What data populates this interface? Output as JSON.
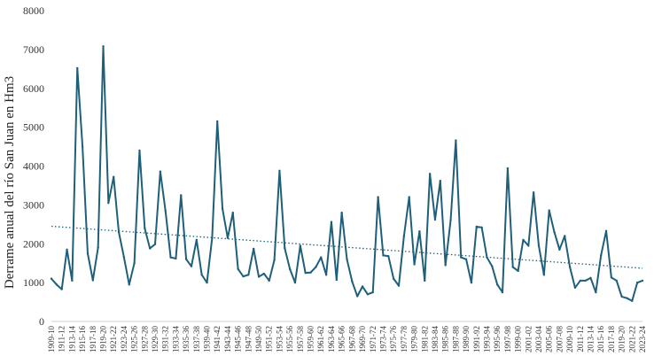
{
  "chart_data": {
    "type": "line",
    "title": "",
    "xlabel": "",
    "ylabel": "Derrame anual del río San Juan en Hm3",
    "ylim": [
      0,
      8000
    ],
    "yticks": [
      0,
      1000,
      2000,
      3000,
      4000,
      5000,
      6000,
      7000,
      8000
    ],
    "grid": false,
    "legend": "none",
    "x_first": "1909-10",
    "x_last": "2023-24",
    "x_count": 115,
    "x_tick_labels": [
      "1909-10",
      "1911-12",
      "1913-14",
      "1915-16",
      "1917-18",
      "1919-20",
      "1921-22",
      "1923-24",
      "1925-26",
      "1927-28",
      "1929-30",
      "1931-32",
      "1933-34",
      "1935-36",
      "1937-38",
      "1939-40",
      "1941-42",
      "1943-44",
      "1945-46",
      "1947-48",
      "1949-50",
      "1951-52",
      "1953-54",
      "1955-56",
      "1957-58",
      "1959-60",
      "1961-62",
      "1963-64",
      "1965-66",
      "1967-68",
      "1969-70",
      "1971-72",
      "1973-74",
      "1975-76",
      "1977-78",
      "1979-80",
      "1981-82",
      "1983-84",
      "1985-86",
      "1987-88",
      "1989-90",
      "1991-92",
      "1993-94",
      "1995-96",
      "1997-98",
      "1999-00",
      "2001-02",
      "2003-04",
      "2005-06",
      "2007-08",
      "2009-10",
      "2011-12",
      "2013-14",
      "2015-16",
      "2017-18",
      "2019-20",
      "2021-22",
      "2023-24"
    ],
    "colors": {
      "series": "#1f5f7a",
      "trend": "#1f5f7a",
      "text": "#333333"
    },
    "series": [
      {
        "values": [
          1100,
          950,
          830,
          1850,
          1050,
          6520,
          4500,
          1750,
          1060,
          1900,
          7080,
          3050,
          3720,
          2300,
          1650,
          950,
          1500,
          4400,
          2400,
          1880,
          1990,
          3860,
          2850,
          1650,
          1620,
          3250,
          1600,
          1420,
          2100,
          1200,
          1000,
          2150,
          5150,
          2900,
          2150,
          2800,
          1350,
          1160,
          1200,
          1870,
          1150,
          1230,
          1050,
          1580,
          3880,
          1890,
          1350,
          1000,
          1950,
          1250,
          1260,
          1400,
          1650,
          1200,
          2560,
          1070,
          2800,
          1600,
          1030,
          650,
          900,
          700,
          750,
          3200,
          1700,
          1680,
          1100,
          920,
          2200,
          3200,
          1470,
          2320,
          1050,
          3800,
          2620,
          3620,
          1450,
          2600,
          4660,
          1650,
          1600,
          1000,
          2440,
          2420,
          1650,
          1420,
          950,
          750,
          3940,
          1400,
          1300,
          2100,
          1950,
          3320,
          1950,
          1200,
          2860,
          2300,
          1850,
          2200,
          1400,
          870,
          1050,
          1050,
          1120,
          750,
          1700,
          2330,
          1130,
          1050,
          640,
          600,
          530,
          1000,
          1050
        ]
      }
    ],
    "trend": {
      "start": 2450,
      "end": 1370
    }
  }
}
